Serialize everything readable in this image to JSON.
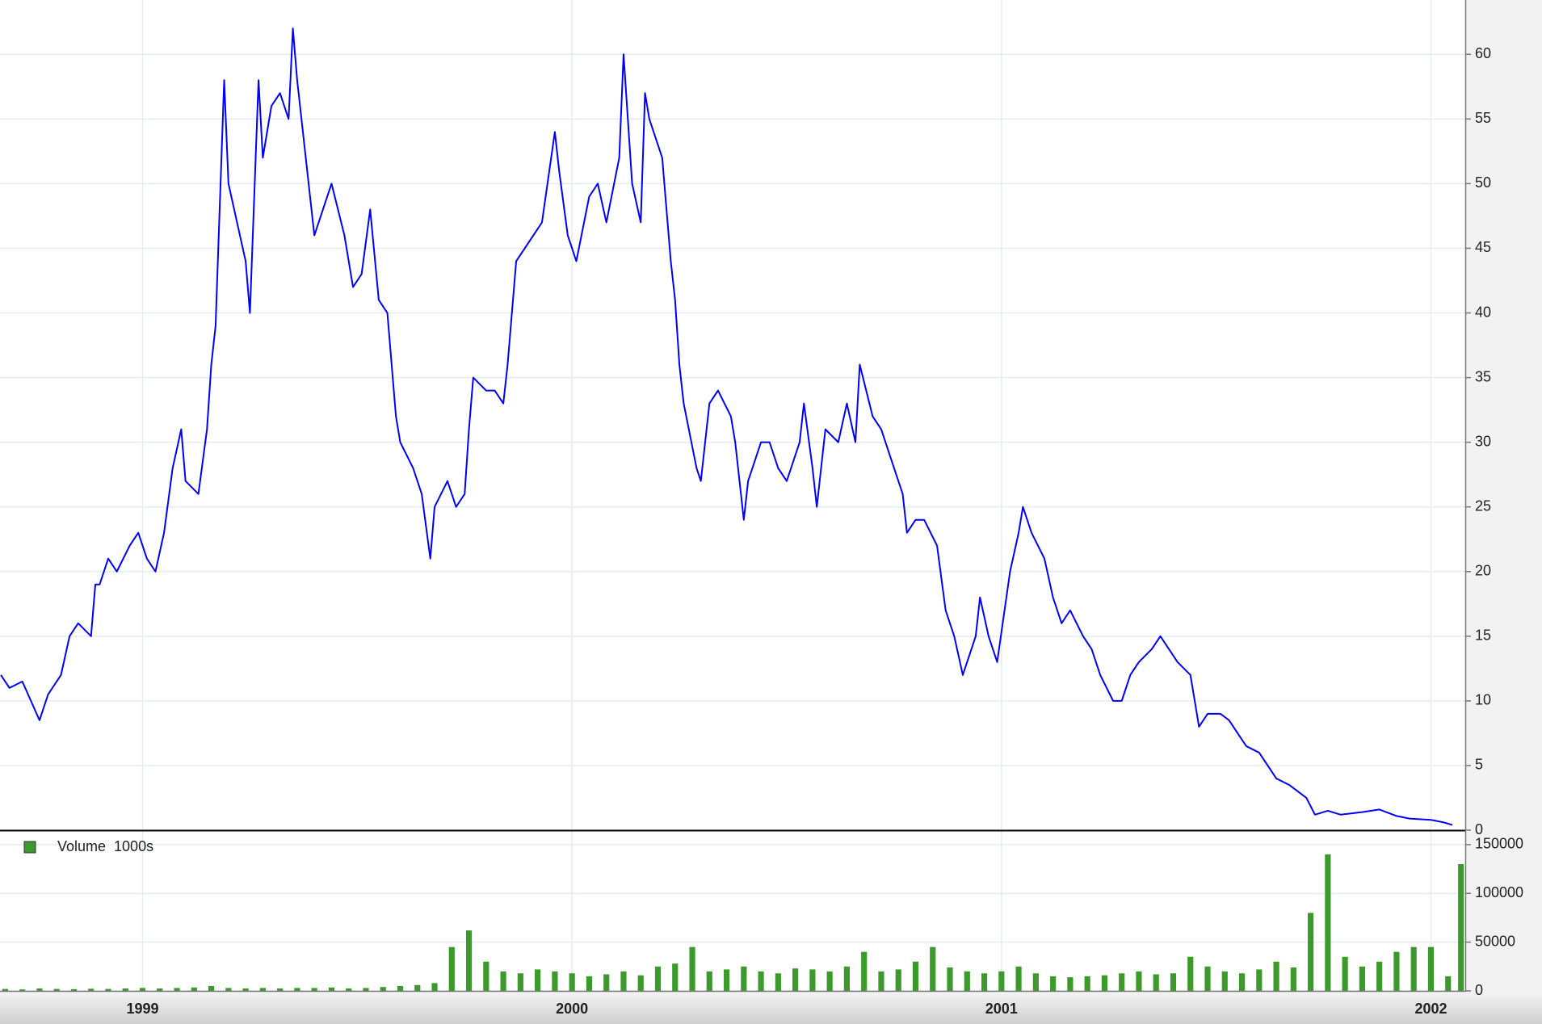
{
  "chart_data": [
    {
      "type": "line",
      "color": "#0000ff",
      "grid": true,
      "xlim": [
        1998.668,
        2002.08
      ],
      "xticks": [
        1999,
        2000,
        2001,
        2002
      ],
      "ylim": [
        0,
        64.2
      ],
      "yticks": [
        0,
        5,
        10,
        15,
        20,
        25,
        30,
        35,
        40,
        45,
        50,
        55,
        60
      ],
      "x": [
        1998.67,
        1998.69,
        1998.72,
        1998.74,
        1998.76,
        1998.78,
        1998.81,
        1998.83,
        1998.85,
        1998.88,
        1998.89,
        1998.9,
        1998.92,
        1998.94,
        1998.97,
        1998.99,
        1999.01,
        1999.03,
        1999.05,
        1999.07,
        1999.09,
        1999.1,
        1999.13,
        1999.15,
        1999.16,
        1999.17,
        1999.19,
        1999.2,
        1999.22,
        1999.24,
        1999.25,
        1999.27,
        1999.28,
        1999.3,
        1999.32,
        1999.34,
        1999.35,
        1999.36,
        1999.38,
        1999.4,
        1999.42,
        1999.44,
        1999.47,
        1999.49,
        1999.51,
        1999.53,
        1999.55,
        1999.57,
        1999.58,
        1999.59,
        1999.6,
        1999.63,
        1999.65,
        1999.67,
        1999.68,
        1999.71,
        1999.73,
        1999.75,
        1999.76,
        1999.77,
        1999.8,
        1999.82,
        1999.84,
        1999.85,
        1999.87,
        1999.89,
        1999.91,
        1999.93,
        1999.96,
        1999.97,
        1999.99,
        2000.01,
        2000.04,
        2000.06,
        2000.08,
        2000.11,
        2000.12,
        2000.14,
        2000.16,
        2000.17,
        2000.18,
        2000.21,
        2000.23,
        2000.24,
        2000.25,
        2000.26,
        2000.29,
        2000.3,
        2000.32,
        2000.34,
        2000.37,
        2000.38,
        2000.4,
        2000.41,
        2000.44,
        2000.46,
        2000.48,
        2000.5,
        2000.53,
        2000.54,
        2000.56,
        2000.57,
        2000.59,
        2000.62,
        2000.64,
        2000.66,
        2000.67,
        2000.7,
        2000.72,
        2000.74,
        2000.77,
        2000.78,
        2000.8,
        2000.82,
        2000.85,
        2000.87,
        2000.89,
        2000.91,
        2000.94,
        2000.95,
        2000.97,
        2000.99,
        2001.02,
        2001.04,
        2001.05,
        2001.07,
        2001.1,
        2001.12,
        2001.14,
        2001.16,
        2001.19,
        2001.21,
        2001.23,
        2001.26,
        2001.28,
        2001.3,
        2001.32,
        2001.35,
        2001.37,
        2001.39,
        2001.41,
        2001.44,
        2001.46,
        2001.48,
        2001.51,
        2001.53,
        2001.55,
        2001.57,
        2001.6,
        2001.62,
        2001.64,
        2001.67,
        2001.69,
        2001.71,
        2001.73,
        2001.76,
        2001.79,
        2001.84,
        2001.88,
        2001.92,
        2001.95,
        2002.0,
        2002.03,
        2002.05
      ],
      "values": [
        12,
        11,
        11.5,
        10,
        8.5,
        10.5,
        12,
        15,
        16,
        15,
        19,
        19,
        21,
        20,
        22,
        23,
        21,
        20,
        23,
        28,
        31,
        27,
        26,
        31,
        36,
        39,
        58,
        50,
        47,
        44,
        40,
        58,
        52,
        56,
        57,
        55,
        62,
        58,
        52,
        46,
        48,
        50,
        46,
        42,
        43,
        48,
        41,
        40,
        36,
        32,
        30,
        28,
        26,
        21,
        25,
        27,
        25,
        26,
        31,
        35,
        34,
        34,
        33,
        36,
        44,
        45,
        46,
        47,
        54,
        51,
        46,
        44,
        49,
        50,
        47,
        52,
        60,
        50,
        47,
        57,
        55,
        52,
        44,
        41,
        36,
        33,
        28,
        27,
        33,
        34,
        32,
        30,
        24,
        27,
        30,
        30,
        28,
        27,
        30,
        33,
        28,
        25,
        31,
        30,
        33,
        30,
        36,
        32,
        31,
        29,
        26,
        23,
        24,
        24,
        22,
        17,
        15,
        12,
        15,
        18,
        15,
        13,
        20,
        23,
        25,
        23,
        21,
        18,
        16,
        17,
        15,
        14,
        12,
        10,
        10,
        12,
        13,
        14,
        15,
        14,
        13,
        12,
        8,
        9,
        9,
        8.5,
        7.5,
        6.5,
        6,
        5,
        4,
        3.5,
        3,
        2.5,
        1.2,
        1.5,
        1.2,
        1.4,
        1.6,
        1.1,
        0.9,
        0.8,
        0.6,
        0.4
      ]
    },
    {
      "type": "bar",
      "grid": true,
      "xlim": [
        1998.668,
        2002.08
      ],
      "xticks": [
        1999,
        2000,
        2001,
        2002
      ],
      "ylim": [
        0,
        164000
      ],
      "yticks": [
        0,
        50000,
        100000,
        150000
      ],
      "x": [
        1998.68,
        1998.72,
        1998.76,
        1998.8,
        1998.84,
        1998.88,
        1998.92,
        1998.96,
        1999.0,
        1999.04,
        1999.08,
        1999.12,
        1999.16,
        1999.2,
        1999.24,
        1999.28,
        1999.32,
        1999.36,
        1999.4,
        1999.44,
        1999.48,
        1999.52,
        1999.56,
        1999.6,
        1999.64,
        1999.68,
        1999.72,
        1999.76,
        1999.8,
        1999.84,
        1999.88,
        1999.92,
        1999.96,
        2000.0,
        2000.04,
        2000.08,
        2000.12,
        2000.16,
        2000.2,
        2000.24,
        2000.28,
        2000.32,
        2000.36,
        2000.4,
        2000.44,
        2000.48,
        2000.52,
        2000.56,
        2000.6,
        2000.64,
        2000.68,
        2000.72,
        2000.76,
        2000.8,
        2000.84,
        2000.88,
        2000.92,
        2000.96,
        2001.0,
        2001.04,
        2001.08,
        2001.12,
        2001.16,
        2001.2,
        2001.24,
        2001.28,
        2001.32,
        2001.36,
        2001.4,
        2001.44,
        2001.48,
        2001.52,
        2001.56,
        2001.6,
        2001.64,
        2001.68,
        2001.72,
        2001.76,
        2001.8,
        2001.84,
        2001.88,
        2001.92,
        2001.96,
        2002.0,
        2002.04,
        2002.07
      ],
      "series": [
        {
          "name": "Volume  1000s",
          "color": "#3c9a2c",
          "values": [
            2000,
            1500,
            2500,
            2000,
            1800,
            2200,
            2000,
            2500,
            3000,
            2500,
            3000,
            3500,
            5000,
            3000,
            2500,
            3000,
            2500,
            3000,
            3000,
            3500,
            2500,
            3000,
            4000,
            5000,
            6000,
            8000,
            45000,
            62000,
            30000,
            20000,
            18000,
            22000,
            20000,
            18000,
            15000,
            17000,
            20000,
            16000,
            25000,
            28000,
            45000,
            20000,
            22000,
            25000,
            20000,
            18000,
            23000,
            22000,
            20000,
            25000,
            40000,
            20000,
            22000,
            30000,
            45000,
            24000,
            20000,
            18000,
            20000,
            25000,
            18000,
            15000,
            14000,
            15000,
            16000,
            18000,
            20000,
            17000,
            18000,
            35000,
            25000,
            20000,
            18000,
            22000,
            30000,
            24000,
            80000,
            140000,
            35000,
            25000,
            30000,
            40000,
            45000,
            45000,
            15000,
            130000
          ]
        }
      ]
    }
  ]
}
